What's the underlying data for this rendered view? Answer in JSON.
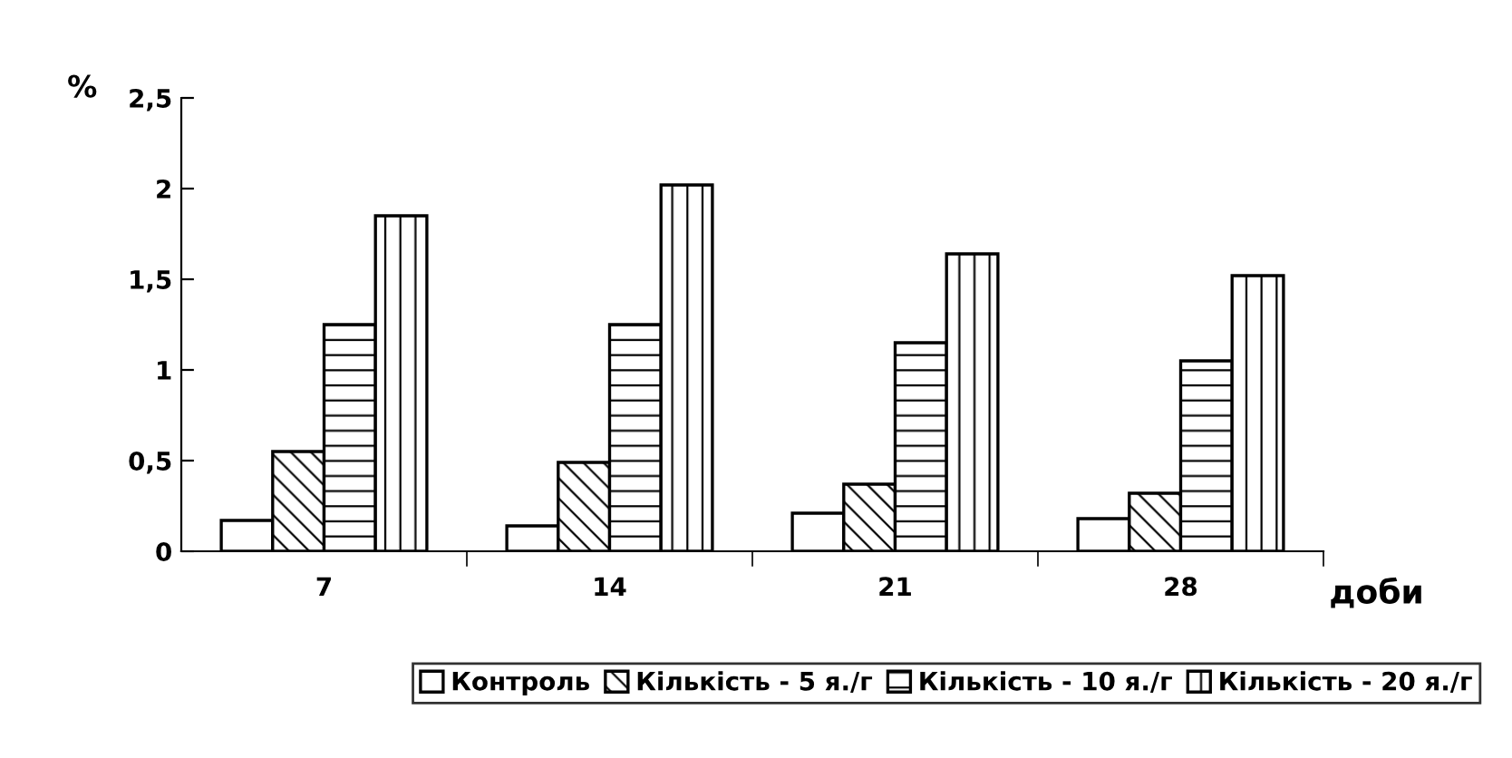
{
  "chart_data": {
    "type": "bar",
    "xlabel": "доби",
    "ylabel": "%",
    "categories": [
      "7",
      "14",
      "21",
      "28"
    ],
    "series": [
      {
        "name": "Контроль",
        "color": "#ffffff",
        "values": [
          0.17,
          0.14,
          0.21,
          0.18
        ]
      },
      {
        "name": "Кількість - 5 я./г",
        "color": "#000000",
        "values": [
          0.55,
          0.49,
          0.37,
          0.32
        ]
      },
      {
        "name": "Кількість - 10 я./г",
        "color": "#000000",
        "values": [
          1.25,
          1.25,
          1.15,
          1.05
        ]
      },
      {
        "name": "Кількість - 20 я./г",
        "color": "#000000",
        "values": [
          1.85,
          2.02,
          1.64,
          1.52
        ]
      }
    ],
    "ylim": [
      0,
      2.5
    ],
    "yticks": [
      0,
      {
        "value": 0.5,
        "label": "0,5"
      },
      1,
      {
        "value": 1.5,
        "label": "1,5"
      },
      2,
      {
        "value": 2.5,
        "label": "2,5"
      }
    ],
    "grid": false,
    "legend": "bottom"
  }
}
